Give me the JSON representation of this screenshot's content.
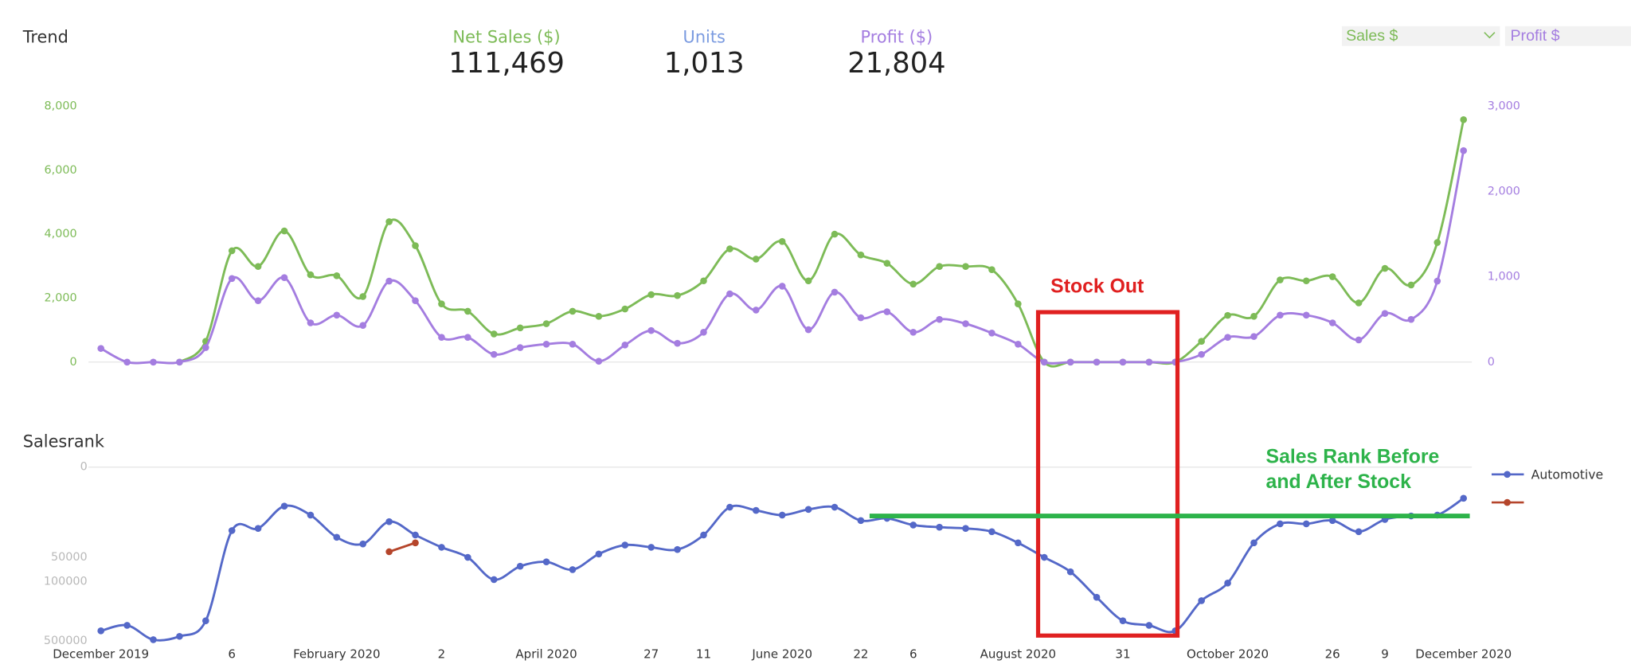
{
  "kpis": [
    {
      "label": "Net Sales ($)",
      "value": "111,469",
      "color": "#7dbb57"
    },
    {
      "label": "Units",
      "value": "1,013",
      "color": "#7b9be0"
    },
    {
      "label": "Profit ($)",
      "value": "21,804",
      "color": "#a47de0"
    }
  ],
  "selectors": [
    {
      "label": "Sales $",
      "color": "#7dbb57"
    },
    {
      "label": "Profit $",
      "color": "#a47de0"
    }
  ],
  "annotations": [
    {
      "text": "Stock Out",
      "color": "#e02020"
    },
    {
      "lines": [
        "Sales Rank Before",
        "and After Stock"
      ],
      "color": "#2db34a"
    }
  ],
  "chart_data": [
    {
      "type": "line",
      "title": "Trend",
      "ylim": [
        0,
        8000
      ],
      "yticks": [
        0,
        {
          "value": 2000,
          "label": "2,000"
        },
        {
          "value": 4000,
          "label": "4,000"
        },
        {
          "value": 6000,
          "label": "6,000"
        },
        {
          "value": 8000,
          "label": "8,000"
        }
      ],
      "y2lim": [
        0,
        3000
      ],
      "y2ticks": [
        0,
        {
          "value": 1000,
          "label": "1,000"
        },
        {
          "value": 2000,
          "label": "2,000"
        },
        {
          "value": 3000,
          "label": "3,000"
        }
      ],
      "series": [
        {
          "color": "#7dbb57",
          "values": [
            null,
            null,
            null,
            0,
            650,
            3480,
            2990,
            4100,
            2730,
            2700,
            2050,
            4390,
            3640,
            1820,
            1590,
            880,
            1070,
            1200,
            1590,
            1430,
            1660,
            2110,
            2080,
            2540,
            3540,
            3220,
            3770,
            2540,
            4000,
            3350,
            3090,
            2440,
            2990,
            2990,
            2890,
            1820,
            0,
            0,
            0,
            0,
            0,
            0,
            650,
            1460,
            1430,
            2570,
            2540,
            2670,
            1850,
            2930,
            2410,
            3740,
            7580
          ]
        },
        {
          "color": "#a47de0",
          "axis": "y2",
          "values": [
            160,
            0,
            0,
            0,
            170,
            980,
            720,
            990,
            460,
            550,
            430,
            950,
            720,
            290,
            290,
            90,
            170,
            210,
            210,
            10,
            200,
            370,
            220,
            350,
            800,
            610,
            890,
            380,
            820,
            520,
            590,
            350,
            500,
            450,
            340,
            210,
            0,
            0,
            0,
            0,
            0,
            0,
            90,
            290,
            300,
            550,
            550,
            460,
            260,
            570,
            500,
            950,
            2480
          ]
        }
      ]
    },
    {
      "type": "line",
      "title": "Salesrank",
      "categories": [
        "December 2019",
        null,
        null,
        null,
        null,
        "6",
        null,
        null,
        null,
        "February 2020",
        null,
        null,
        null,
        "2",
        null,
        null,
        null,
        "April 2020",
        null,
        null,
        null,
        "27",
        null,
        "11",
        null,
        null,
        "June 2020",
        null,
        null,
        "22",
        null,
        "6",
        null,
        null,
        null,
        "August 2020",
        null,
        null,
        null,
        "31",
        null,
        null,
        null,
        "October 2020",
        null,
        null,
        null,
        "26",
        null,
        "9",
        null,
        null,
        "December 2020"
      ],
      "y_scale": "symlog",
      "symlog_constant": 5000,
      "y_inverted": true,
      "ylim": [
        0,
        500000
      ],
      "yticks": [
        0,
        50000,
        100000,
        500000
      ],
      "legend": "right",
      "series": [
        {
          "name": "Automotive",
          "color": "#5468c8",
          "values": [
            383000,
            330000,
            486000,
            444000,
            292000,
            22000,
            20500,
            9090,
            12900,
            27300,
            33500,
            16300,
            25400,
            37100,
            50000,
            94400,
            64700,
            57000,
            71200,
            45300,
            34700,
            37100,
            39700,
            25400,
            9500,
            10800,
            12900,
            10400,
            9500,
            15700,
            14500,
            18300,
            19700,
            20500,
            22800,
            32400,
            50000,
            75800,
            154000,
            292000,
            330000,
            383000,
            169000,
            104000,
            32400,
            17600,
            17600,
            15700,
            22800,
            15100,
            13300,
            12900,
            6450
          ]
        },
        {
          "color": "#b5452b",
          "values": [
            null,
            null,
            null,
            null,
            null,
            null,
            null,
            null,
            null,
            null,
            null,
            42400,
            32400,
            null,
            null,
            null,
            null,
            null,
            null,
            null,
            null,
            null,
            null,
            null,
            null,
            null,
            null,
            null,
            null,
            null,
            null,
            null,
            null,
            null,
            null,
            null,
            null,
            null,
            null,
            null,
            null,
            null,
            null,
            null,
            null,
            null,
            null,
            null,
            null,
            null,
            null,
            null,
            null
          ]
        }
      ]
    }
  ]
}
